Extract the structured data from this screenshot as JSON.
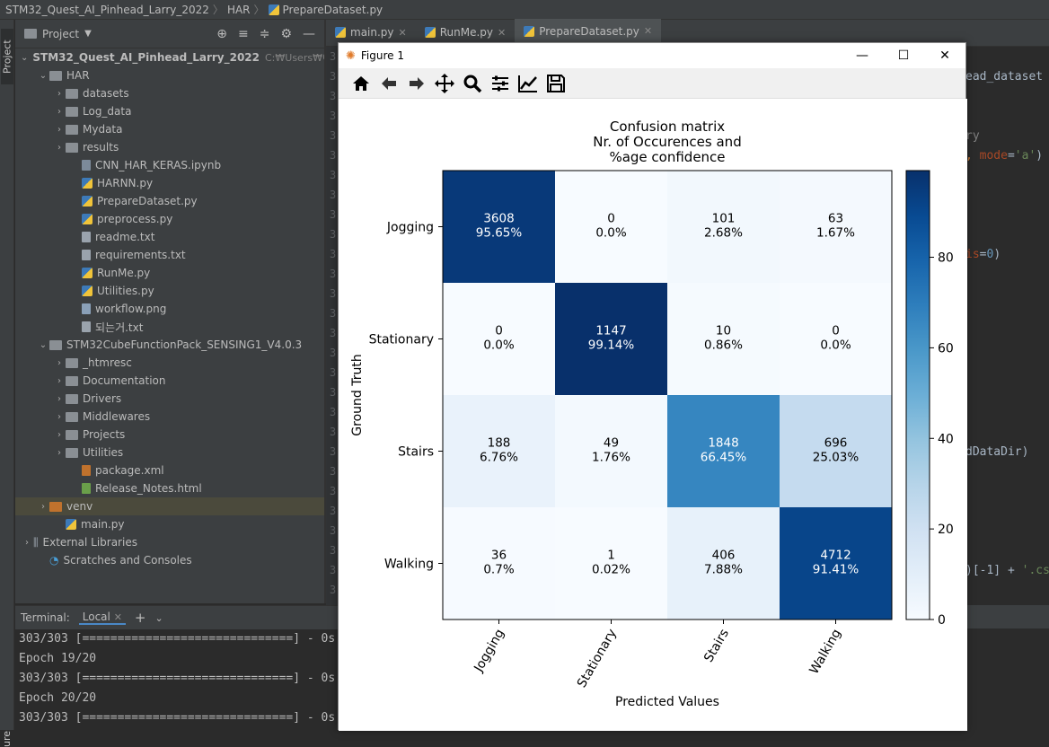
{
  "breadcrumb": {
    "project": "STM32_Quest_AI_Pinhead_Larry_2022",
    "folder": "HAR",
    "file": "PrepareDataset.py"
  },
  "left_toolbar": {
    "project_tab": "Project",
    "bottom_tab": "ure"
  },
  "project_panel": {
    "title": "Project",
    "tools": [
      "⊕",
      "≡",
      "≑",
      "⚙",
      "—"
    ],
    "tree": [
      {
        "label": "STM32_Quest_AI_Pinhead_Larry_2022",
        "extra": "C:₩Users₩이동",
        "type": "folder",
        "indent": 0,
        "arrow": "⌄",
        "bold": true
      },
      {
        "label": "HAR",
        "type": "folder",
        "indent": 1,
        "arrow": "⌄"
      },
      {
        "label": "datasets",
        "type": "folder",
        "indent": 2,
        "arrow": "›"
      },
      {
        "label": "Log_data",
        "type": "folder",
        "indent": 2,
        "arrow": "›"
      },
      {
        "label": "Mydata",
        "type": "folder",
        "indent": 2,
        "arrow": "›"
      },
      {
        "label": "results",
        "type": "folder",
        "indent": 2,
        "arrow": "›"
      },
      {
        "label": "CNN_HAR_KERAS.ipynb",
        "type": "nb",
        "indent": 3
      },
      {
        "label": "HARNN.py",
        "type": "py",
        "indent": 3
      },
      {
        "label": "PrepareDataset.py",
        "type": "py",
        "indent": 3
      },
      {
        "label": "preprocess.py",
        "type": "py",
        "indent": 3
      },
      {
        "label": "readme.txt",
        "type": "txt",
        "indent": 3
      },
      {
        "label": "requirements.txt",
        "type": "txt",
        "indent": 3
      },
      {
        "label": "RunMe.py",
        "type": "py",
        "indent": 3
      },
      {
        "label": "Utilities.py",
        "type": "py",
        "indent": 3
      },
      {
        "label": "workflow.png",
        "type": "img",
        "indent": 3
      },
      {
        "label": "되는거.txt",
        "type": "txt",
        "indent": 3
      },
      {
        "label": "STM32CubeFunctionPack_SENSING1_V4.0.3",
        "type": "folder",
        "indent": 1,
        "arrow": "⌄"
      },
      {
        "label": "_htmresc",
        "type": "folder",
        "indent": 2,
        "arrow": "›"
      },
      {
        "label": "Documentation",
        "type": "folder",
        "indent": 2,
        "arrow": "›"
      },
      {
        "label": "Drivers",
        "type": "folder",
        "indent": 2,
        "arrow": "›"
      },
      {
        "label": "Middlewares",
        "type": "folder",
        "indent": 2,
        "arrow": "›"
      },
      {
        "label": "Projects",
        "type": "folder",
        "indent": 2,
        "arrow": "›"
      },
      {
        "label": "Utilities",
        "type": "folder",
        "indent": 2,
        "arrow": "›"
      },
      {
        "label": "package.xml",
        "type": "xml",
        "indent": 3
      },
      {
        "label": "Release_Notes.html",
        "type": "html",
        "indent": 3
      },
      {
        "label": "venv",
        "type": "folder-orange",
        "indent": 1,
        "arrow": "›",
        "selected": true
      },
      {
        "label": "main.py",
        "type": "py",
        "indent": 2
      },
      {
        "label": "External Libraries",
        "type": "lib",
        "indent": 0,
        "arrow": "›"
      },
      {
        "label": "Scratches and Consoles",
        "type": "scratch",
        "indent": 1
      }
    ]
  },
  "tabs": [
    {
      "label": "main.py",
      "active": false
    },
    {
      "label": "RunMe.py",
      "active": false
    },
    {
      "label": "PrepareDataset.py",
      "active": true
    }
  ],
  "editor_fragments": [
    {
      "text": "ead_dataset",
      "cls": "c-def",
      "top": 26
    },
    {
      "text": "ry",
      "cls": "c-cm",
      "top": 92
    },
    {
      "text": ", ",
      "cls": "c-kw",
      "top": 114,
      "rest": [
        {
          "text": "mode",
          "cls": "c-par"
        },
        {
          "text": "=",
          "cls": "c-def"
        },
        {
          "text": "'a'",
          "cls": "c-str"
        },
        {
          "text": ")",
          "cls": "c-def"
        }
      ]
    },
    {
      "text": "is",
      "cls": "c-par",
      "top": 224,
      "rest": [
        {
          "text": "=",
          "cls": "c-def"
        },
        {
          "text": "0",
          "cls": "c-num"
        },
        {
          "text": ")",
          "cls": "c-def"
        }
      ]
    },
    {
      "text": "dDataDir)",
      "cls": "c-def",
      "top": 444
    },
    {
      "text": ")[-1] + ",
      "cls": "c-def",
      "top": 576,
      "rest": [
        {
          "text": "'.cs",
          "cls": "c-str"
        }
      ]
    }
  ],
  "terminal": {
    "label": "Terminal:",
    "tab": "Local",
    "lines": [
      "303/303 [==============================] - 0s",
      "Epoch 19/20",
      "303/303 [==============================] - 0s",
      "Epoch 20/20",
      "303/303 [==============================] - 0s"
    ]
  },
  "figure": {
    "title": "Figure 1",
    "toolbar": [
      "home-icon",
      "back-icon",
      "forward-icon",
      "pan-icon",
      "zoom-icon",
      "configure-icon",
      "lines-icon",
      "save-icon"
    ]
  },
  "chart_data": {
    "type": "heatmap",
    "title": [
      "Confusion matrix",
      "Nr. of Occurences and",
      "%age confidence"
    ],
    "xlabel": "Predicted Values",
    "ylabel": "Ground Truth",
    "x_categories": [
      "Jogging",
      "Stationary",
      "Stairs",
      "Walking"
    ],
    "y_categories": [
      "Jogging",
      "Stationary",
      "Stairs",
      "Walking"
    ],
    "counts": [
      [
        3608,
        0,
        101,
        63
      ],
      [
        0,
        1147,
        10,
        0
      ],
      [
        188,
        49,
        1848,
        696
      ],
      [
        36,
        1,
        406,
        4712
      ]
    ],
    "percent_labels": [
      [
        "95.65%",
        "0.0%",
        "2.68%",
        "1.67%"
      ],
      [
        "0.0%",
        "99.14%",
        "0.86%",
        "0.0%"
      ],
      [
        "6.76%",
        "1.76%",
        "66.45%",
        "25.03%"
      ],
      [
        "0.7%",
        "0.02%",
        "7.88%",
        "91.41%"
      ]
    ],
    "percent": [
      [
        95.65,
        0.0,
        2.68,
        1.67
      ],
      [
        0.0,
        99.14,
        0.86,
        0.0
      ],
      [
        6.76,
        1.76,
        66.45,
        25.03
      ],
      [
        0.7,
        0.02,
        7.88,
        91.41
      ]
    ],
    "colorbar": {
      "range": [
        0,
        99.14
      ],
      "ticks": [
        0,
        20,
        40,
        60,
        80
      ],
      "cmap": "Blues"
    }
  }
}
